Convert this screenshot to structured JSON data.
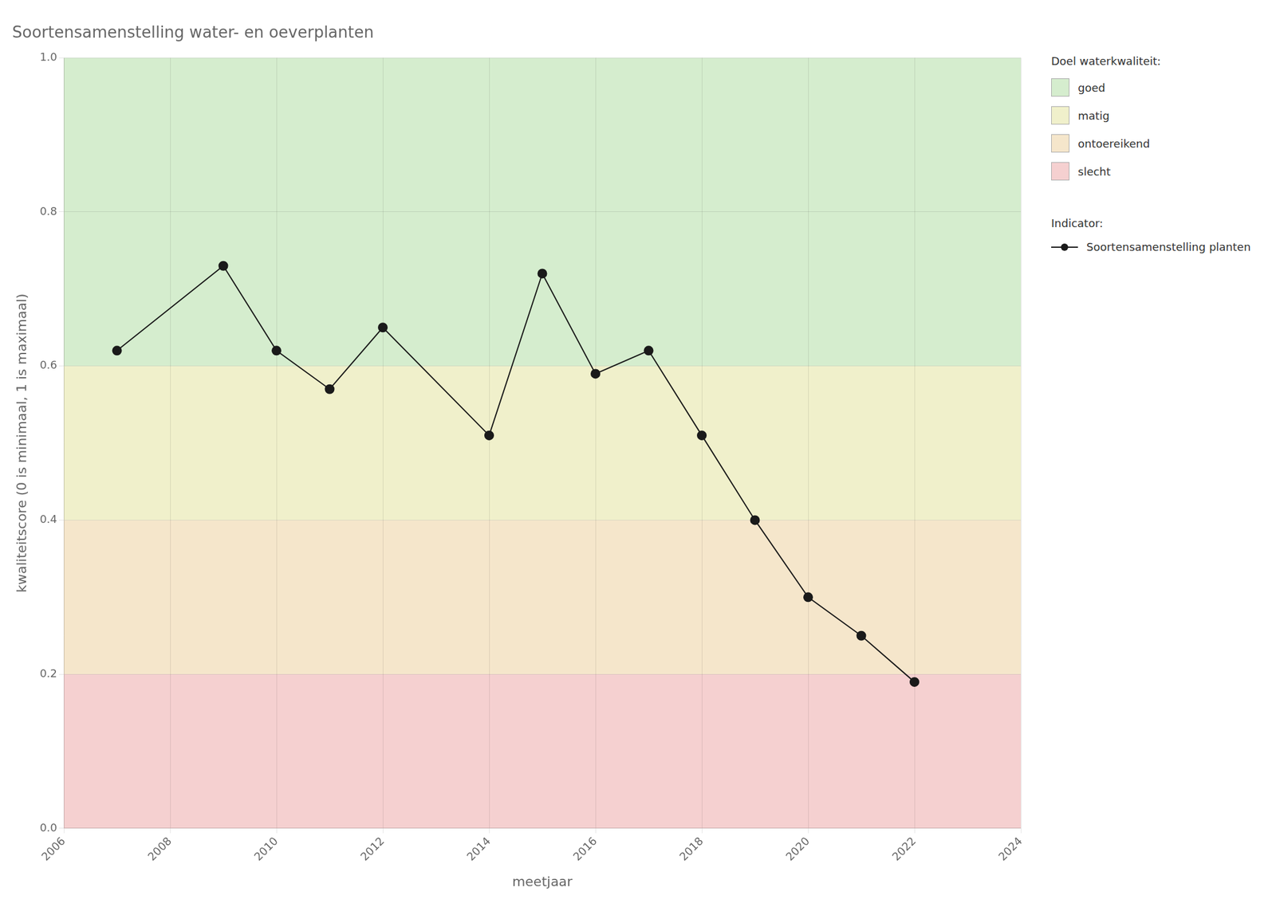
{
  "chart_data": {
    "type": "line",
    "title": "Soortensamenstelling water- en oeverplanten",
    "x_label": "meetjaar",
    "y_label": "kwaliteitscore (0 is minimaal, 1 is maximaal)",
    "x": [
      2007,
      2009,
      2010,
      2011,
      2012,
      2014,
      2015,
      2016,
      2017,
      2018,
      2019,
      2020,
      2021,
      2022
    ],
    "series": [
      {
        "name": "Soortensamenstelling planten",
        "legend_title": "Indicator:",
        "color": "#1a1a1a",
        "marker": "circle",
        "values": [
          0.62,
          0.73,
          0.62,
          0.57,
          0.65,
          0.51,
          0.72,
          0.59,
          0.62,
          0.51,
          0.4,
          0.3,
          0.25,
          0.19
        ]
      }
    ],
    "bands_legend_title": "Doel waterkwaliteit:",
    "bands": [
      {
        "name": "goed",
        "color": "#d5edce",
        "range": [
          0.6,
          1.0
        ]
      },
      {
        "name": "matig",
        "color": "#f0f0cb",
        "range": [
          0.4,
          0.6
        ]
      },
      {
        "name": "ontoereikend",
        "color": "#f5e6cb",
        "range": [
          0.2,
          0.4
        ]
      },
      {
        "name": "slecht",
        "color": "#f5d0d0",
        "range": [
          0.0,
          0.2
        ]
      }
    ],
    "xlim": [
      2006,
      2024
    ],
    "xticks": [
      2006,
      2008,
      2010,
      2012,
      2014,
      2016,
      2018,
      2020,
      2022,
      2024
    ],
    "ylim": [
      0.0,
      1.0
    ],
    "yticks": [
      {
        "value": 0.0,
        "label": "0.0"
      },
      0.2,
      0.4,
      0.6,
      0.8,
      {
        "value": 1.0,
        "label": "1.0"
      }
    ],
    "grid": true,
    "legend": "right"
  }
}
